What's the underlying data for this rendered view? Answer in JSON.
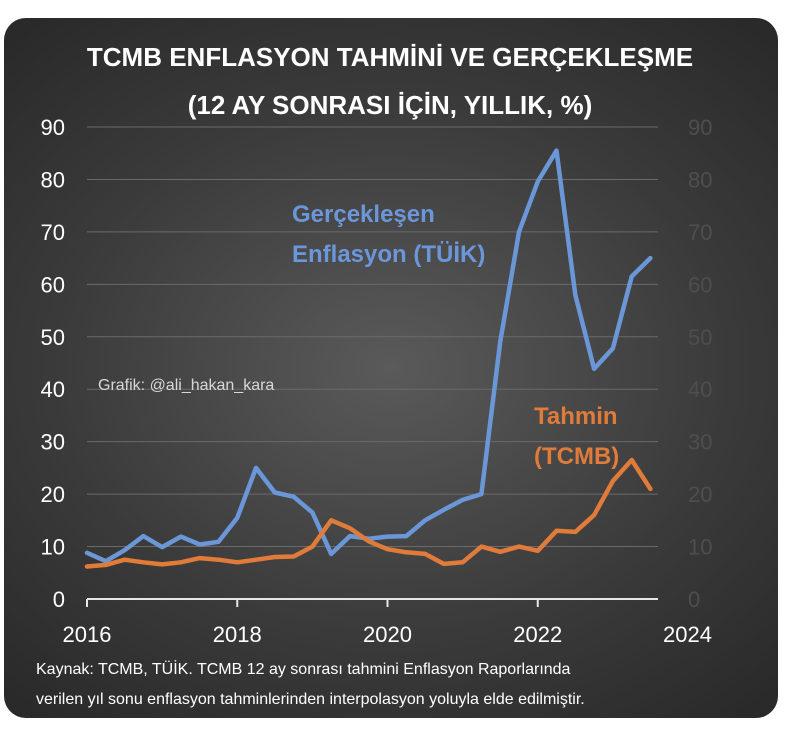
{
  "chart_data": {
    "type": "line",
    "title": "TCMB ENFLASYON TAHMİNİ VE GERÇEKLEŞME",
    "subtitle": "(12 AY SONRASI İÇİN, YILLIK, %)",
    "xlabel": "",
    "ylabel": "",
    "xlim": [
      2016,
      2024
    ],
    "ylim": [
      0,
      90
    ],
    "x_ticks": [
      "2016",
      "2018",
      "2020",
      "2022",
      "2024"
    ],
    "y_ticks": [
      "0",
      "10",
      "20",
      "30",
      "40",
      "50",
      "60",
      "70",
      "80",
      "90"
    ],
    "secondary_y_ticks": [
      "0",
      "10",
      "20",
      "30",
      "40",
      "50",
      "60",
      "70",
      "80",
      "90"
    ],
    "grid": true,
    "series": [
      {
        "name": "Gerçekleşen Enflasyon (TÜİK)",
        "color": "#6b97d9",
        "x": [
          2016.0,
          2016.25,
          2016.5,
          2016.75,
          2017.0,
          2017.25,
          2017.5,
          2017.75,
          2018.0,
          2018.25,
          2018.5,
          2018.75,
          2019.0,
          2019.25,
          2019.5,
          2019.75,
          2020.0,
          2020.25,
          2020.5,
          2020.75,
          2021.0,
          2021.25,
          2021.5,
          2021.75,
          2022.0,
          2022.25,
          2022.5,
          2022.75,
          2023.0,
          2023.25,
          2023.5
        ],
        "values": [
          8.8,
          7.2,
          9.3,
          12.0,
          9.9,
          11.9,
          10.4,
          10.9,
          15.5,
          25.0,
          20.3,
          19.5,
          16.5,
          8.6,
          12.0,
          11.5,
          11.9,
          12.0,
          15.0,
          17.0,
          18.9,
          20.0,
          49.0,
          70.0,
          79.6,
          85.5,
          58.0,
          43.9,
          47.8,
          61.5,
          65.0
        ]
      },
      {
        "name": "Tahmin (TCMB)",
        "color": "#e07b39",
        "x": [
          2016.0,
          2016.25,
          2016.5,
          2016.75,
          2017.0,
          2017.25,
          2017.5,
          2017.75,
          2018.0,
          2018.25,
          2018.5,
          2018.75,
          2019.0,
          2019.25,
          2019.5,
          2019.75,
          2020.0,
          2020.25,
          2020.5,
          2020.75,
          2021.0,
          2021.25,
          2021.5,
          2021.75,
          2022.0,
          2022.25,
          2022.5,
          2022.75,
          2023.0,
          2023.25,
          2023.5
        ],
        "values": [
          6.2,
          6.5,
          7.5,
          7.0,
          6.6,
          7.0,
          7.8,
          7.5,
          7.0,
          7.5,
          8.0,
          8.1,
          10.0,
          15.0,
          13.5,
          11.0,
          9.5,
          8.9,
          8.6,
          6.7,
          7.0,
          10.0,
          9.0,
          10.0,
          9.2,
          13.0,
          12.8,
          16.0,
          22.5,
          26.5,
          21.0
        ]
      }
    ],
    "annotations": {
      "actual_label_1": "Gerçekleşen",
      "actual_label_2": "Enflasyon (TÜİK)",
      "forecast_label_1": "Tahmin",
      "forecast_label_2": "(TCMB)",
      "watermark": "Grafik: @ali_hakan_kara"
    },
    "source_line_1": "Kaynak: TCMB, TÜİK. TCMB 12 ay sonrası tahmini Enflasyon Raporlarında",
    "source_line_2": "verilen yıl sonu enflasyon tahminlerinden interpolasyon yoluyla elde edilmiştir."
  }
}
